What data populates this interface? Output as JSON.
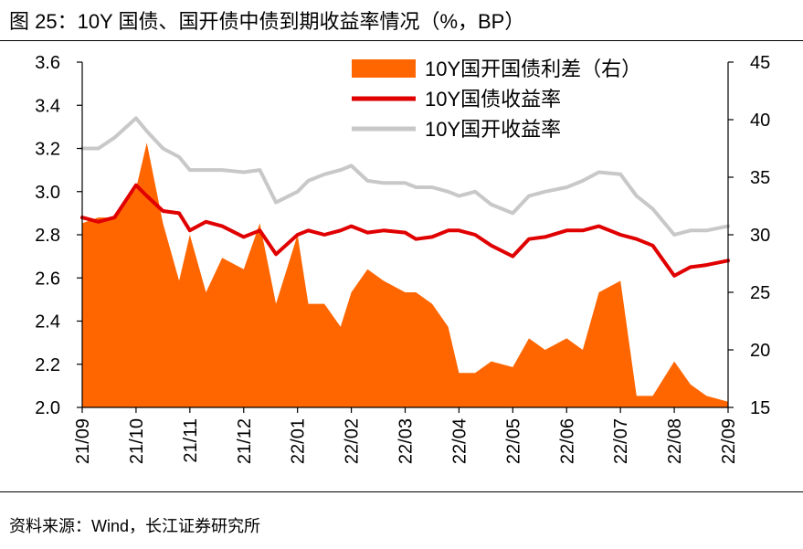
{
  "figure": {
    "title": "图 25：10Y 国债、国开债中债到期收益率情况（%，BP）",
    "source": "资料来源：Wind，长江证券研究所"
  },
  "colors": {
    "spread": "#FF6600",
    "cgb": "#E00000",
    "cdb": "#C8C8C8"
  },
  "chart_data": {
    "type": "line",
    "title": "10Y 国债、国开债中债到期收益率情况（%，BP）",
    "xlabel": "",
    "ylabel_left": "%",
    "ylabel_right": "BP",
    "ylim_left": [
      2.0,
      3.6
    ],
    "ylim_right": [
      15,
      45
    ],
    "left_ticks": [
      "2.0",
      "2.2",
      "2.4",
      "2.6",
      "2.8",
      "3.0",
      "3.2",
      "3.4",
      "3.6"
    ],
    "right_ticks": [
      "15",
      "20",
      "25",
      "30",
      "35",
      "40",
      "45"
    ],
    "categories": [
      "21/09",
      "21/10",
      "21/11",
      "21/12",
      "22/01",
      "22/02",
      "22/03",
      "22/04",
      "22/05",
      "22/06",
      "22/07",
      "22/08",
      "22/09"
    ],
    "x": [
      0,
      0.3,
      0.6,
      1.0,
      1.2,
      1.5,
      1.8,
      2.0,
      2.3,
      2.6,
      3.0,
      3.3,
      3.6,
      4.0,
      4.2,
      4.5,
      4.8,
      5.0,
      5.3,
      5.6,
      6.0,
      6.2,
      6.5,
      6.8,
      7.0,
      7.3,
      7.6,
      8.0,
      8.3,
      8.6,
      9.0,
      9.3,
      9.6,
      10.0,
      10.3,
      10.6,
      11.0,
      11.3,
      11.6,
      12.0
    ],
    "series": [
      {
        "name": "10Y国开国债利差（右）",
        "type": "area",
        "axis": "right",
        "color": "#FF6600",
        "values": [
          31,
          31.5,
          31.5,
          34,
          38,
          31,
          26,
          30,
          25,
          28,
          27,
          31,
          24,
          30,
          24,
          24,
          22,
          25,
          27,
          26,
          25,
          25,
          24,
          22,
          18,
          18,
          19,
          18.5,
          21,
          20,
          21,
          20,
          25,
          26,
          16,
          16,
          19,
          17,
          16,
          15.5
        ]
      },
      {
        "name": "10Y国债收益率",
        "type": "line",
        "axis": "left",
        "color": "#E00000",
        "values": [
          2.88,
          2.86,
          2.88,
          3.03,
          2.98,
          2.91,
          2.9,
          2.82,
          2.86,
          2.84,
          2.79,
          2.82,
          2.71,
          2.8,
          2.82,
          2.8,
          2.82,
          2.84,
          2.81,
          2.82,
          2.81,
          2.78,
          2.79,
          2.82,
          2.82,
          2.8,
          2.75,
          2.7,
          2.78,
          2.79,
          2.82,
          2.82,
          2.84,
          2.8,
          2.78,
          2.75,
          2.61,
          2.65,
          2.66,
          2.68
        ]
      },
      {
        "name": "10Y国开收益率",
        "type": "line",
        "axis": "left",
        "color": "#C8C8C8",
        "values": [
          3.2,
          3.2,
          3.25,
          3.34,
          3.28,
          3.2,
          3.16,
          3.1,
          3.1,
          3.1,
          3.09,
          3.1,
          2.95,
          3.0,
          3.05,
          3.08,
          3.1,
          3.12,
          3.05,
          3.04,
          3.04,
          3.02,
          3.02,
          3.0,
          2.98,
          3.0,
          2.94,
          2.9,
          2.98,
          3.0,
          3.02,
          3.05,
          3.09,
          3.08,
          2.98,
          2.92,
          2.8,
          2.82,
          2.82,
          2.84
        ]
      }
    ],
    "legend": [
      "10Y国开国债利差（右）",
      "10Y国债收益率",
      "10Y国开收益率"
    ],
    "legend_position": "top-right"
  }
}
